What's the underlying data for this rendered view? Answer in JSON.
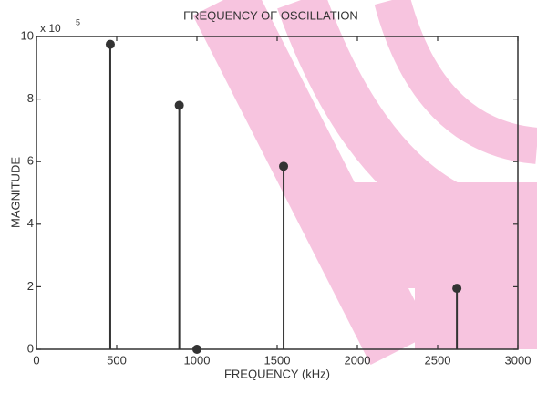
{
  "chart_data": {
    "type": "stem",
    "title": "FREQUENCY OF OSCILLATION",
    "x_label": "FREQUENCY (kHz)",
    "y_label": "MAGNITUDE",
    "y_multiplier": "x 10",
    "y_multiplier_exponent": "5",
    "x": [
      460,
      890,
      1000,
      1540,
      2620
    ],
    "values": [
      9.75,
      7.8,
      0,
      5.85,
      1.95
    ],
    "color": "#333333",
    "xlim": [
      0,
      3000
    ],
    "xticks": [
      0,
      500,
      1000,
      1500,
      2000,
      2500,
      3000
    ],
    "ylim": [
      0,
      10
    ],
    "yticks": [
      0,
      2,
      4,
      6,
      8,
      10
    ]
  }
}
